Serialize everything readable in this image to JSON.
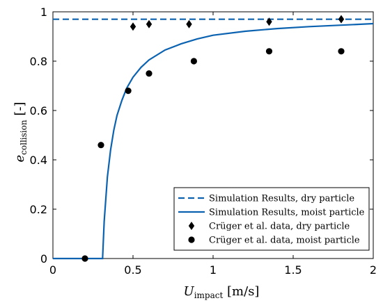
{
  "chart_data": {
    "type": "line",
    "xlabel": {
      "var": "U",
      "sub": "impact",
      "unit": " [m/s]"
    },
    "ylabel": {
      "var": "e",
      "sub": "collision",
      "unit": " [-]"
    },
    "xlim": [
      0,
      2
    ],
    "ylim": [
      0,
      1
    ],
    "xticks": [
      "0",
      "0.5",
      "1",
      "1.5",
      "2"
    ],
    "yticks": [
      "0",
      "0.2",
      "0.4",
      "0.6",
      "0.8",
      "1"
    ],
    "grid": false,
    "legend_position": "bottom-right",
    "colors": {
      "line": "#0b62b0",
      "marker": "#000000"
    },
    "series": [
      {
        "name": "Simulation Results, dry particle",
        "kind": "line",
        "style": "dashed",
        "x": [
          0,
          2
        ],
        "y": [
          0.97,
          0.97
        ]
      },
      {
        "name": "Simulation Results, moist particle",
        "kind": "line",
        "style": "solid",
        "x": [
          0,
          0.31,
          0.32,
          0.34,
          0.36,
          0.38,
          0.4,
          0.43,
          0.46,
          0.5,
          0.55,
          0.6,
          0.7,
          0.8,
          0.9,
          1.0,
          1.2,
          1.4,
          1.6,
          1.8,
          2.0
        ],
        "y": [
          0,
          0,
          0.15,
          0.33,
          0.44,
          0.52,
          0.58,
          0.64,
          0.69,
          0.735,
          0.775,
          0.805,
          0.845,
          0.87,
          0.89,
          0.905,
          0.921,
          0.932,
          0.94,
          0.946,
          0.952
        ]
      },
      {
        "name": "Crüger et al. data, dry particle",
        "kind": "scatter",
        "marker": "diamond",
        "x": [
          0.5,
          0.6,
          0.85,
          1.35,
          1.8
        ],
        "y": [
          0.94,
          0.95,
          0.95,
          0.96,
          0.97
        ]
      },
      {
        "name": "Crüger et al. data, moist particle",
        "kind": "scatter",
        "marker": "circle",
        "x": [
          0.2,
          0.3,
          0.47,
          0.6,
          0.88,
          1.35,
          1.8
        ],
        "y": [
          0.0,
          0.46,
          0.68,
          0.75,
          0.8,
          0.84,
          0.84
        ]
      }
    ]
  }
}
